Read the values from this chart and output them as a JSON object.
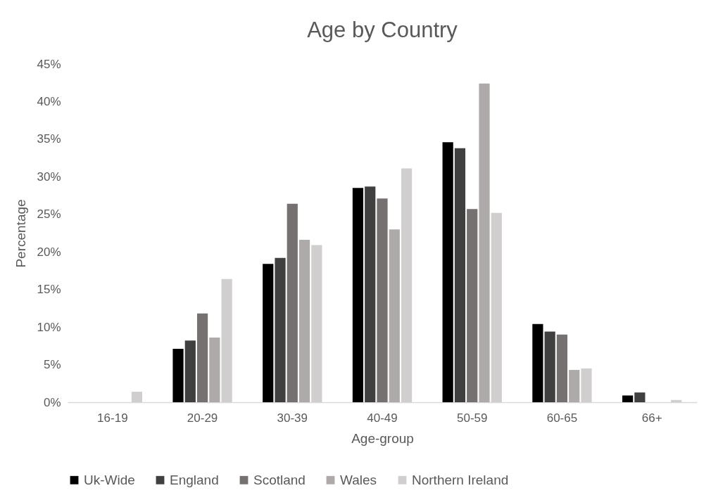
{
  "chart_data": {
    "type": "bar",
    "title": "Age by Country",
    "xlabel": "Age-group",
    "ylabel": "Percentage",
    "categories": [
      "16-19",
      "20-29",
      "30-39",
      "40-49",
      "50-59",
      "60-65",
      "66+"
    ],
    "series": [
      {
        "name": "Uk-Wide",
        "color": "#000000",
        "values": [
          0,
          7.1,
          18.4,
          28.5,
          34.6,
          10.4,
          0.9
        ]
      },
      {
        "name": "England",
        "color": "#404040",
        "values": [
          0,
          8.2,
          19.2,
          28.7,
          33.8,
          9.4,
          1.3
        ]
      },
      {
        "name": "Scotland",
        "color": "#767171",
        "values": [
          0,
          11.8,
          26.4,
          27.1,
          25.7,
          9.0,
          0
        ]
      },
      {
        "name": "Wales",
        "color": "#aeaaaa",
        "values": [
          0,
          8.6,
          21.6,
          23.0,
          42.4,
          4.3,
          0
        ]
      },
      {
        "name": "Northern Ireland",
        "color": "#d0cece",
        "values": [
          1.4,
          16.4,
          20.9,
          31.1,
          25.2,
          4.5,
          0.3
        ]
      }
    ],
    "ylim": [
      0,
      45
    ],
    "yticks": [
      {
        "value": 0,
        "label": "0%"
      },
      {
        "value": 5,
        "label": "5%"
      },
      {
        "value": 10,
        "label": "10%"
      },
      {
        "value": 15,
        "label": "15%"
      },
      {
        "value": 20,
        "label": "20%"
      },
      {
        "value": 25,
        "label": "25%"
      },
      {
        "value": 30,
        "label": "30%"
      },
      {
        "value": 35,
        "label": "35%"
      },
      {
        "value": 40,
        "label": "40%"
      },
      {
        "value": 45,
        "label": "45%"
      }
    ],
    "grid": false,
    "legend": "bottom"
  }
}
